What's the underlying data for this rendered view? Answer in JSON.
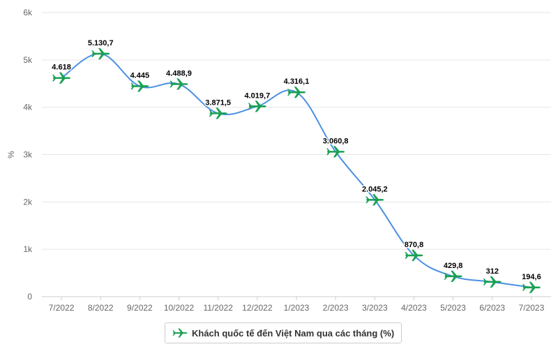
{
  "chart_data": {
    "type": "line",
    "categories": [
      "7/2022",
      "8/2022",
      "9/2022",
      "10/2022",
      "11/2022",
      "12/2022",
      "1/2023",
      "2/2023",
      "3/2023",
      "4/2023",
      "5/2023",
      "6/2023",
      "7/2023"
    ],
    "series": [
      {
        "name": "Khách quốc tế đến Việt Nam qua các tháng (%)",
        "values": [
          4618,
          5130.7,
          4445,
          4488.9,
          3871.5,
          4019.7,
          4316.1,
          3060.8,
          2045.2,
          870.8,
          429.8,
          312,
          194.6
        ],
        "labels": [
          "4.618",
          "5.130,7",
          "4.445",
          "4.488,9",
          "3.871,5",
          "4.019,7",
          "4.316,1",
          "3.060,8",
          "2.045,2",
          "870,8",
          "429,8",
          "312",
          "194,6"
        ],
        "line_color": "#4a90e2",
        "marker": "airplane-icon",
        "marker_color": "#1aa053"
      }
    ],
    "ylabel": "%",
    "ylim": [
      0,
      6000
    ],
    "yticks": [
      0,
      1000,
      2000,
      3000,
      4000,
      5000,
      6000
    ],
    "yticklabels": [
      "0",
      "1k",
      "2k",
      "3k",
      "4k",
      "5k",
      "6k"
    ],
    "grid": true,
    "legend": "bottom-center"
  },
  "legend": {
    "label": "Khách quốc tế đến Việt Nam qua các tháng (%)"
  }
}
